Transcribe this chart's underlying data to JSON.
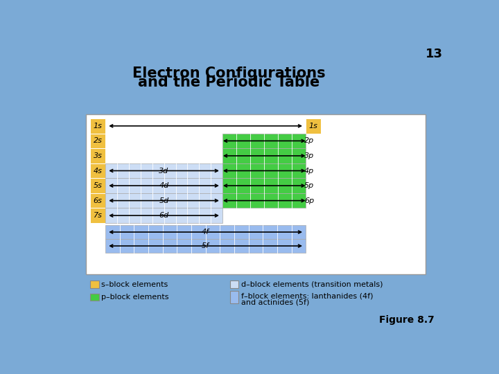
{
  "title_line1": "Electron Configurations",
  "title_line2": "and the Periodic Table",
  "slide_number": "13",
  "figure_label": "Figure 8.7",
  "bg_color": "#7baad6",
  "panel_bg": "#ffffff",
  "color_s": "#f0c040",
  "color_p": "#44cc44",
  "color_d": "#ccddf5",
  "color_f": "#99bbee",
  "color_grid_line": "#ffffff",
  "title_color": "#000000",
  "legend_items": [
    {
      "color": "#f0c040",
      "label": "s–block elements",
      "col": 0
    },
    {
      "color": "#44cc44",
      "label": "p–block elements",
      "col": 0
    },
    {
      "color": "#ccddf5",
      "label": "d–block elements (transition metals)",
      "col": 1
    },
    {
      "color": "#99bbee",
      "label": "f–block elements: lanthanides (4f)\nand actinides (5f)",
      "col": 1
    }
  ]
}
